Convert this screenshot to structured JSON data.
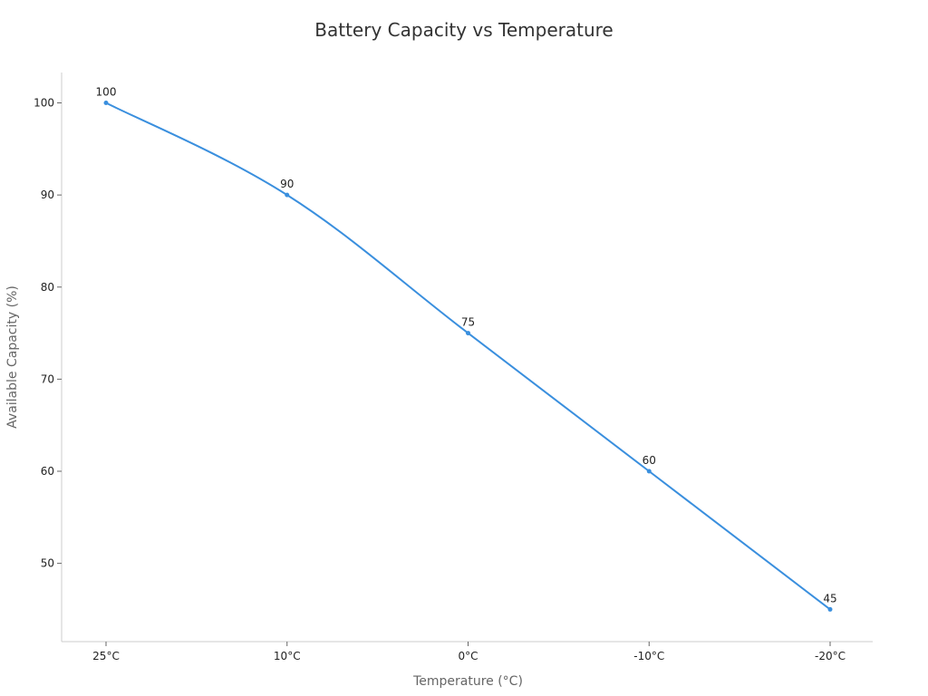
{
  "chart_data": {
    "type": "line",
    "title": "Battery Capacity vs Temperature",
    "xlabel": "Temperature (°C)",
    "ylabel": "Available Capacity (%)",
    "categories": [
      "25°C",
      "10°C",
      "0°C",
      "-10°C",
      "-20°C"
    ],
    "series": [
      {
        "values": [
          100,
          90,
          75,
          60,
          45
        ],
        "color": "#3a8fde"
      }
    ],
    "yticks": [
      50,
      60,
      70,
      80,
      90,
      100
    ],
    "ylim": [
      41.5,
      103.3
    ],
    "grid": false,
    "legend": "none",
    "data_labels": true
  }
}
